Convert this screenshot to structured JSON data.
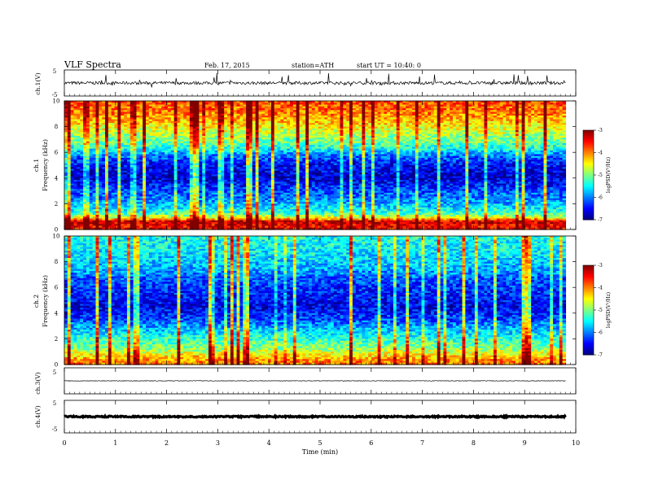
{
  "header": {
    "title": "VLF Spectra",
    "date": "Feb. 17, 2015",
    "station": "station=ATH",
    "start": "start  UT =   10:40: 0"
  },
  "chart_data": [
    {
      "type": "line",
      "name": "ch1-waveform",
      "ylabel": "ch.1(V)",
      "ylim": [
        -5,
        5
      ],
      "yticks": [
        "5",
        "-5"
      ],
      "x_range_min": [
        0,
        9.8
      ],
      "approx_mean": 0,
      "approx_amplitude": 1.2,
      "style": "noisy broadband signal with sharp spikes"
    },
    {
      "type": "heatmap",
      "name": "ch1-spectrogram",
      "ylabel_lines": [
        "ch.1",
        "Frequency (kHz)"
      ],
      "xlim": [
        0,
        9.8
      ],
      "ylim": [
        0,
        10
      ],
      "yticks": [
        "0",
        "2",
        "4",
        "6",
        "8",
        "10"
      ],
      "colorbar": {
        "label": "logPSD(V²/Hz)",
        "range": [
          -7,
          -3
        ],
        "ticks": [
          "-3",
          "-4",
          "-5",
          "-6",
          "-7"
        ]
      },
      "band_levels": [
        {
          "f": 0.3,
          "v": -3.5
        },
        {
          "f": 0.6,
          "v": -3.2
        },
        {
          "f": 0.9,
          "v": -4.5
        },
        {
          "f": 1.2,
          "v": -5.2
        },
        {
          "f": 1.6,
          "v": -5.5
        },
        {
          "f": 2.0,
          "v": -5.8
        },
        {
          "f": 2.4,
          "v": -6.0
        },
        {
          "f": 3.0,
          "v": -6.2
        },
        {
          "f": 4.0,
          "v": -6.7
        },
        {
          "f": 5.0,
          "v": -6.5
        },
        {
          "f": 5.8,
          "v": -6.0
        },
        {
          "f": 6.3,
          "v": -5.4
        },
        {
          "f": 7.0,
          "v": -5.0
        },
        {
          "f": 8.0,
          "v": -4.5
        },
        {
          "f": 9.0,
          "v": -4.0
        },
        {
          "f": 10.0,
          "v": -3.8
        }
      ]
    },
    {
      "type": "heatmap",
      "name": "ch2-spectrogram",
      "ylabel_lines": [
        "ch.2",
        "Frequency (kHz)"
      ],
      "xlim": [
        0,
        9.8
      ],
      "ylim": [
        0,
        10
      ],
      "yticks": [
        "0",
        "2",
        "4",
        "6",
        "8",
        "10"
      ],
      "colorbar": {
        "label": "logPSD(V²/Hz)",
        "range": [
          -7,
          -3
        ],
        "ticks": [
          "-3",
          "-4",
          "-5",
          "-6",
          "-7"
        ]
      },
      "band_levels": [
        {
          "f": 0.3,
          "v": -4.0
        },
        {
          "f": 0.8,
          "v": -4.5
        },
        {
          "f": 1.3,
          "v": -5.0
        },
        {
          "f": 2.0,
          "v": -5.3
        },
        {
          "f": 2.8,
          "v": -5.8
        },
        {
          "f": 3.5,
          "v": -6.2
        },
        {
          "f": 4.5,
          "v": -6.6
        },
        {
          "f": 5.5,
          "v": -6.4
        },
        {
          "f": 6.5,
          "v": -6.2
        },
        {
          "f": 7.5,
          "v": -5.8
        },
        {
          "f": 8.5,
          "v": -5.6
        },
        {
          "f": 10.0,
          "v": -5.4
        }
      ]
    },
    {
      "type": "line",
      "name": "ch3-waveform",
      "ylabel": "ch.3(V)",
      "ylim": [
        -5,
        5
      ],
      "yticks": [
        "5"
      ],
      "x_range_min": [
        0,
        9.8
      ],
      "approx_mean": 0,
      "approx_amplitude": 0.2
    },
    {
      "type": "line",
      "name": "ch4-waveform",
      "ylabel": "ch.4(V)",
      "ylim": [
        -5,
        5
      ],
      "yticks": [
        "5",
        "-5"
      ],
      "x_range_min": [
        0,
        9.8
      ],
      "approx_mean": 0,
      "approx_amplitude": 0.4
    }
  ],
  "xaxis": {
    "label": "Time  (min)",
    "ticks": [
      "0",
      "1",
      "2",
      "3",
      "4",
      "5",
      "6",
      "7",
      "8",
      "9",
      "10"
    ],
    "range": [
      0,
      10
    ]
  },
  "colors": {
    "background": "#ffffff",
    "axes": "#000000",
    "waveform": "#000000"
  }
}
